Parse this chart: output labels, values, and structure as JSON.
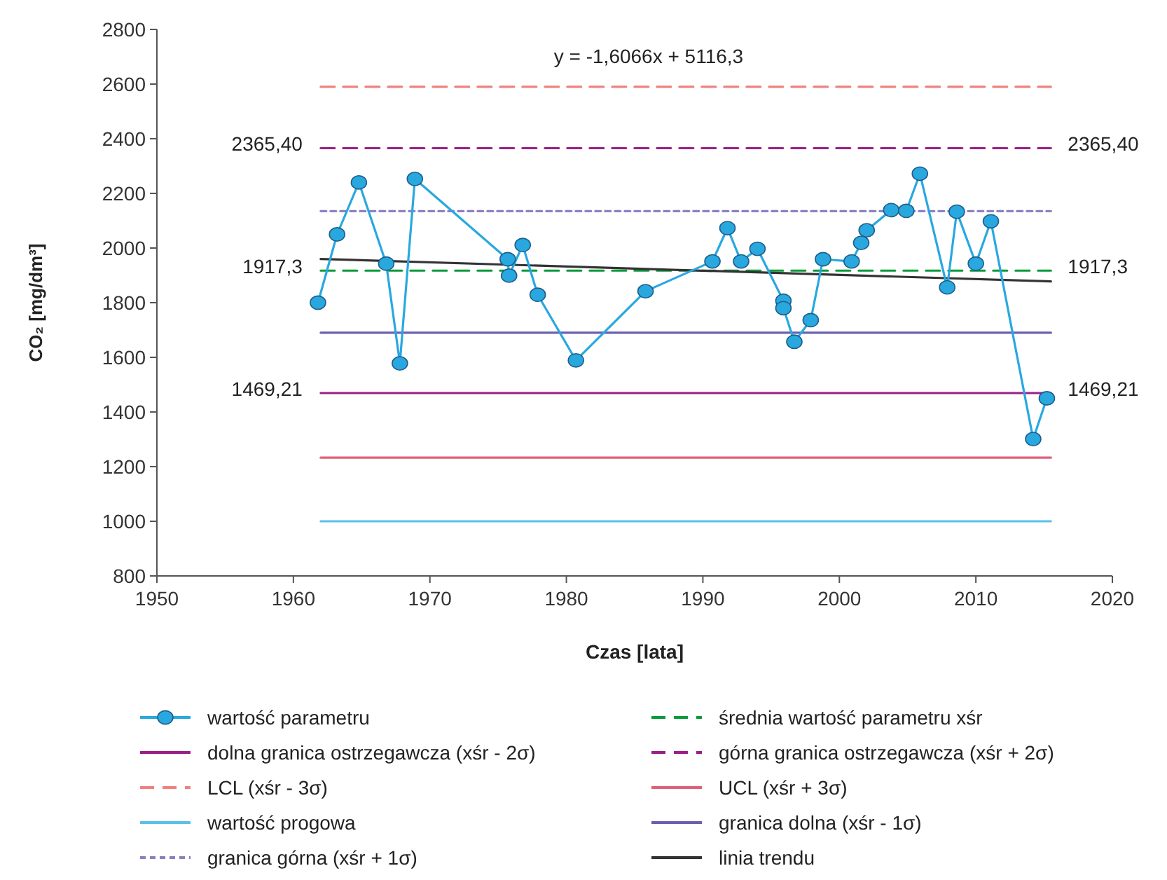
{
  "chart_data": {
    "type": "line",
    "xlabel": "Czas [lata]",
    "ylabel": "CO₂ [mg/dm³]",
    "xlim": [
      1950,
      2020
    ],
    "xticks": [
      1950,
      1960,
      1970,
      1980,
      1990,
      2000,
      2010,
      2020
    ],
    "ylim": [
      800,
      2800
    ],
    "yticks": [
      800,
      1000,
      1200,
      1400,
      1600,
      1800,
      2000,
      2200,
      2400,
      2600,
      2800
    ],
    "grid": false,
    "legend": "bottom",
    "annotations": [
      "y = -1,6066x + 5116,3"
    ],
    "series": [
      {
        "name": "wartość parametru",
        "color": "#29a8e0",
        "marker": "circle",
        "line_style": "solid",
        "x": [
          1961.8,
          1963.2,
          1964.8,
          1966.8,
          1967.8,
          1968.9,
          1975.7,
          1975.8,
          1976.8,
          1977.9,
          1980.7,
          1985.8,
          1990.7,
          1991.8,
          1992.8,
          1994.0,
          1995.9,
          1995.9,
          1996.7,
          1997.9,
          1998.8,
          2000.9,
          2001.6,
          2002.0,
          2003.8,
          2004.9,
          2005.9,
          2007.9,
          2008.6,
          2010.0,
          2011.1,
          2014.2,
          2015.2
        ],
        "values": [
          1800,
          2050,
          2240,
          1943,
          1578,
          2253,
          1959,
          1899,
          2011,
          1829,
          1589,
          1842,
          1951,
          2073,
          1951,
          1997,
          1807,
          1780,
          1657,
          1736,
          1959,
          1951,
          2019,
          2065,
          2139,
          2136,
          2272,
          1856,
          2133,
          1943,
          2098,
          1301,
          1450
        ]
      },
      {
        "name": "średnia wartość parametru xśr",
        "color": "#0a9a3c",
        "marker": "none",
        "line_style": "dashed",
        "x": [
          1962,
          2015.5
        ],
        "values": [
          1917.3,
          1917.3
        ],
        "value_labels": [
          "1917,3",
          "1917,3"
        ]
      },
      {
        "name": "dolna granica ostrzegawcza (xśr - 2σ)",
        "color": "#9b1f86",
        "marker": "none",
        "line_style": "solid",
        "x": [
          1962,
          2015.5
        ],
        "values": [
          1469.21,
          1469.21
        ],
        "value_labels": [
          "1469,21",
          "1469,21"
        ]
      },
      {
        "name": "górna granica ostrzegawcza (xśr + 2σ)",
        "color": "#9b1f86",
        "marker": "none",
        "line_style": "dashed",
        "x": [
          1962,
          2015.5
        ],
        "values": [
          2365.4,
          2365.4
        ],
        "value_labels": [
          "2365,40",
          "2365,40"
        ]
      },
      {
        "name": "LCL (xśr - 3σ)",
        "color": "#f08080",
        "marker": "none",
        "line_style": "dashed",
        "x": [
          1962,
          2015.5
        ],
        "values": [
          2590,
          2590
        ]
      },
      {
        "name": "UCL (xśr + 3σ)",
        "color": "#e0607a",
        "marker": "none",
        "line_style": "solid",
        "x": [
          1962,
          2015.5
        ],
        "values": [
          1233,
          1233
        ]
      },
      {
        "name": "wartość progowa",
        "color": "#5bc0e8",
        "marker": "none",
        "line_style": "solid",
        "x": [
          1962,
          2015.5
        ],
        "values": [
          1000,
          1000
        ]
      },
      {
        "name": "granica dolna (xśr - 1σ)",
        "color": "#6a5fb0",
        "marker": "none",
        "line_style": "solid",
        "x": [
          1962,
          2015.5
        ],
        "values": [
          1690,
          1690
        ]
      },
      {
        "name": "granica górna (xśr + 1σ)",
        "color": "#8a80c0",
        "marker": "none",
        "line_style": "dotted",
        "x": [
          1962,
          2015.5
        ],
        "values": [
          2135,
          2135
        ]
      },
      {
        "name": "linia trendu",
        "color": "#333333",
        "marker": "none",
        "line_style": "solid",
        "x": [
          1962,
          2015.5
        ],
        "values": [
          1960,
          1878
        ]
      }
    ]
  }
}
